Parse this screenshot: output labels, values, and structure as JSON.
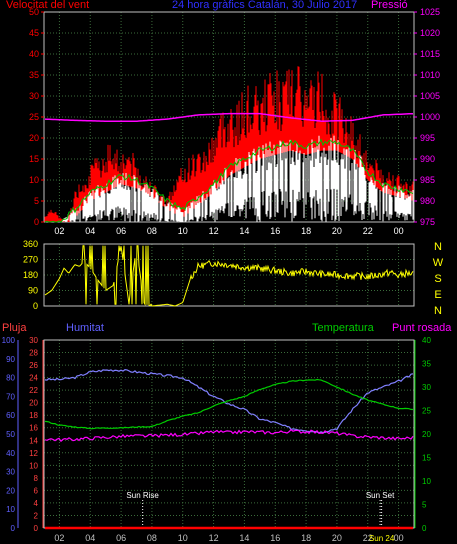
{
  "header": {
    "left_title": "Velocitat del vent",
    "center_title": "24 hora gràfics Catalán, 30 Julio 2017",
    "right_title": "Pressió"
  },
  "colors": {
    "background": "#000000",
    "grid": "#3a6b3a",
    "wind": "#ff0000",
    "wind_avg": "#00c000",
    "gust": "#ffffff",
    "pressure": "#ff00ff",
    "direction": "#ffff00",
    "humidity": "#8080ff",
    "temperature": "#00cc00",
    "dewpoint": "#ff00ff",
    "rain": "#ff0000",
    "rain_axis": "#ff4040",
    "hum_axis": "#6060ff",
    "temp_axis": "#00cc00",
    "compass": "#ffff00"
  },
  "chart_data": [
    {
      "type": "line",
      "name": "wind_pressure",
      "title": "24 hora gràfics Catalán, 30 Julio 2017",
      "ylabel_left": "Velocitat del vent",
      "ylabel_right": "Pressió",
      "ylim_left": [
        0,
        50
      ],
      "ylim_right": [
        975,
        1025
      ],
      "yticks_left": [
        "50",
        "45",
        "40",
        "35",
        "30",
        "25",
        "20",
        "15",
        "10",
        "5",
        "0"
      ],
      "yticks_right": [
        "1025",
        "1020",
        "1015",
        "1010",
        "1005",
        "1000",
        "995",
        "990",
        "985",
        "980",
        "975"
      ],
      "xticks": [
        "02",
        "04",
        "06",
        "08",
        "10",
        "12",
        "14",
        "16",
        "18",
        "20",
        "22",
        "00"
      ],
      "x_hours": [
        1,
        3,
        5,
        7,
        9,
        11,
        13,
        15,
        17,
        19,
        21,
        23
      ],
      "series": [
        {
          "key": "gust",
          "color": "#ff0000",
          "x": [
            0,
            0.5,
            1,
            1.5,
            2,
            2.5,
            3,
            3.5,
            4,
            4.5,
            5,
            5.5,
            6,
            6.5,
            7,
            7.5,
            8,
            8.5,
            9,
            9.5,
            10,
            10.5,
            11,
            11.5,
            12,
            12.5,
            13,
            13.5,
            14,
            14.5,
            15,
            15.5,
            16,
            16.5,
            17,
            17.5,
            18,
            18.5,
            19,
            19.5,
            20,
            20.5,
            21,
            21.5,
            22,
            22.5,
            23,
            23.5,
            24
          ],
          "values": [
            1,
            3,
            1,
            0,
            6,
            9,
            11,
            13,
            15,
            16,
            14,
            15,
            12,
            10,
            8,
            6,
            5,
            8,
            11,
            13,
            14,
            15,
            18,
            22,
            24,
            23,
            26,
            27,
            25,
            29,
            30,
            28,
            31,
            30,
            27,
            29,
            30,
            26,
            25,
            24,
            20,
            18,
            14,
            12,
            11,
            10,
            9,
            8,
            8
          ]
        },
        {
          "key": "wind_avg",
          "color": "#00c000",
          "x": [
            0,
            1,
            2,
            3,
            4,
            5,
            6,
            7,
            8,
            9,
            10,
            11,
            12,
            13,
            14,
            15,
            16,
            17,
            18,
            19,
            20,
            21,
            22,
            23,
            24
          ],
          "values": [
            0,
            0,
            3,
            7,
            9,
            11,
            10,
            8,
            5,
            3,
            6,
            9,
            13,
            15,
            17,
            18,
            19,
            18,
            19,
            19,
            17,
            12,
            9,
            8,
            7
          ]
        },
        {
          "key": "wind_min",
          "color": "#ffffff",
          "x": [
            0,
            1,
            2,
            3,
            4,
            5,
            6,
            7,
            8,
            9,
            10,
            11,
            12,
            13,
            14,
            15,
            16,
            17,
            18,
            19,
            20,
            21,
            22,
            23,
            24
          ],
          "values": [
            0,
            0,
            1,
            3,
            4,
            5,
            4,
            3,
            1,
            0,
            2,
            4,
            6,
            8,
            9,
            10,
            10,
            9,
            10,
            10,
            8,
            6,
            4,
            3,
            3
          ]
        },
        {
          "key": "pressure",
          "color": "#ff00ff",
          "x": [
            0,
            2,
            4,
            6,
            8,
            10,
            12,
            14,
            16,
            18,
            20,
            22,
            24
          ],
          "values": [
            999.5,
            999.2,
            999.0,
            999.0,
            999.5,
            1000.5,
            1000.8,
            1000.8,
            999.8,
            999.0,
            999.2,
            1000.5,
            1000.8
          ]
        }
      ]
    },
    {
      "type": "line",
      "name": "wind_direction",
      "ylim": [
        0,
        360
      ],
      "yticks": [
        "360",
        "270",
        "180",
        "90",
        "0"
      ],
      "compass": [
        "N",
        "W",
        "S",
        "E",
        "N"
      ],
      "series": [
        {
          "key": "direction",
          "color": "#ffff00",
          "x": [
            0,
            0.5,
            1,
            1.3,
            1.6,
            2,
            2.3,
            2.6,
            3,
            3.5,
            4,
            4.5,
            5,
            5.5,
            6,
            6.5,
            7,
            7.5,
            8,
            8.5,
            9,
            9.5,
            10,
            11,
            12,
            13,
            14,
            15,
            16,
            17,
            18,
            19,
            20,
            21,
            22,
            22.5,
            23,
            23.5,
            24
          ],
          "values": [
            60,
            90,
            160,
            220,
            190,
            240,
            230,
            260,
            220,
            150,
            90,
            120,
            350,
            20,
            340,
            10,
            0,
            5,
            10,
            0,
            20,
            160,
            230,
            250,
            240,
            225,
            220,
            205,
            190,
            200,
            185,
            180,
            175,
            170,
            185,
            195,
            175,
            190,
            185
          ]
        }
      ]
    },
    {
      "type": "line",
      "name": "hum_temp_rain",
      "ylabels": {
        "rain": "Pluja",
        "humidity": "Humitat",
        "temperature": "Temperatura",
        "dewpoint": "Punt rosada"
      },
      "yticks_rain": [
        "30",
        "28",
        "26",
        "24",
        "22",
        "20",
        "18",
        "16",
        "14",
        "12",
        "10",
        "8",
        "6",
        "4",
        "2",
        "0"
      ],
      "yticks_humidity": [
        "100",
        "90",
        "80",
        "70",
        "60",
        "50",
        "40",
        "30",
        "20",
        "10",
        "0"
      ],
      "yticks_temp": [
        "40",
        "35",
        "30",
        "25",
        "20",
        "15",
        "10",
        "5",
        "0"
      ],
      "xticks": [
        "02",
        "04",
        "06",
        "08",
        "10",
        "12",
        "14",
        "16",
        "18",
        "20",
        "22",
        "00"
      ],
      "annotations": [
        {
          "label": "Sun Rise",
          "hour": 6.4
        },
        {
          "label": "Sun Set",
          "hour": 21.8
        },
        {
          "label": "Sun 24",
          "hour": 21.9
        }
      ],
      "series": [
        {
          "key": "humidity",
          "color": "#8080ff",
          "ylim": [
            0,
            100
          ],
          "x": [
            0,
            1,
            2,
            3,
            4,
            5,
            6,
            7,
            8,
            9,
            10,
            11,
            12,
            13,
            14,
            15,
            16,
            17,
            18,
            19,
            20,
            21,
            22,
            23,
            24
          ],
          "values": [
            79,
            79,
            80,
            83,
            84,
            84,
            83,
            82,
            81,
            80,
            75,
            70,
            66,
            63,
            58,
            56,
            53,
            52,
            51,
            53,
            63,
            72,
            75,
            78,
            82
          ]
        },
        {
          "key": "temperature",
          "color": "#00cc00",
          "ylim": [
            0,
            40
          ],
          "x": [
            0,
            1,
            2,
            3,
            4,
            5,
            6,
            7,
            8,
            9,
            10,
            11,
            12,
            13,
            14,
            15,
            16,
            17,
            18,
            19,
            20,
            21,
            22,
            23,
            24
          ],
          "values": [
            22.8,
            21.9,
            21.5,
            21.2,
            21.3,
            21.3,
            21.5,
            21.6,
            22.8,
            23.8,
            24.5,
            26.0,
            27.1,
            28.0,
            29.5,
            30.5,
            31.2,
            31.5,
            31.5,
            30.0,
            28.5,
            27.2,
            26.3,
            25.5,
            25.2
          ]
        },
        {
          "key": "dewpoint",
          "color": "#ff00ff",
          "ylim": [
            0,
            40
          ],
          "x": [
            0,
            1,
            2,
            3,
            4,
            5,
            6,
            7,
            8,
            9,
            10,
            11,
            12,
            13,
            14,
            15,
            16,
            17,
            18,
            19,
            20,
            21,
            22,
            23,
            24
          ],
          "values": [
            19.0,
            18.8,
            18.9,
            19.1,
            19.3,
            19.5,
            19.6,
            19.6,
            19.8,
            19.9,
            20.1,
            20.5,
            20.3,
            20.5,
            20.4,
            20.3,
            20.6,
            20.5,
            20.4,
            20.2,
            19.6,
            19.4,
            19.2,
            19.0,
            19.3
          ]
        },
        {
          "key": "rain",
          "color": "#ff0000",
          "ylim": [
            0,
            30
          ],
          "x": [
            0,
            24
          ],
          "values": [
            0,
            0
          ]
        }
      ]
    }
  ]
}
